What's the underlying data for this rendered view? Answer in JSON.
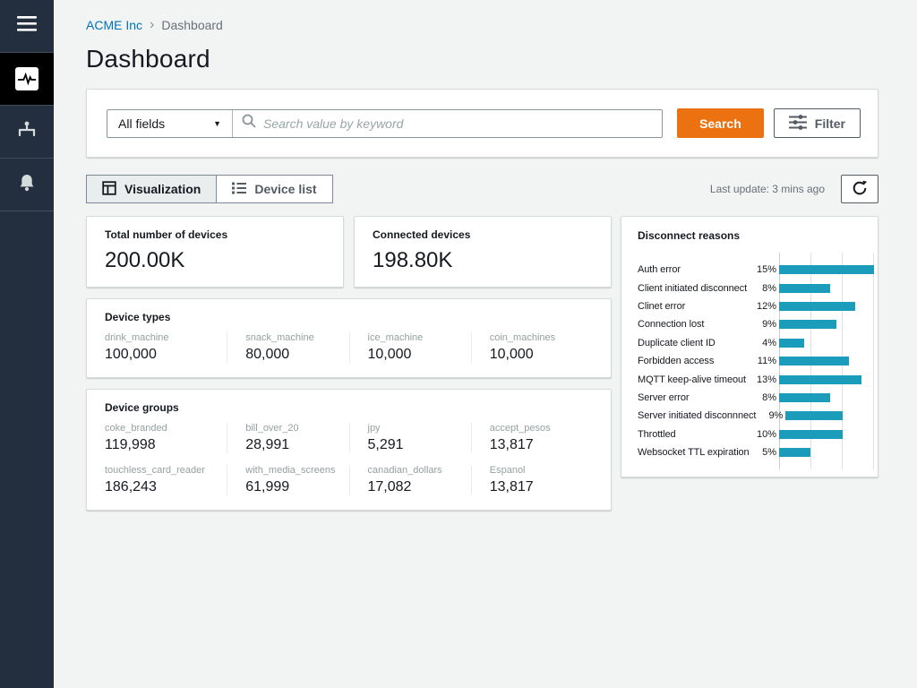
{
  "sidebar": {
    "items": [
      {
        "id": "menu",
        "icon": "hamburger-icon"
      },
      {
        "id": "monitor",
        "icon": "pulse-icon",
        "active": true
      },
      {
        "id": "hierarchy",
        "icon": "sitemap-icon"
      },
      {
        "id": "alarms",
        "icon": "bell-icon"
      }
    ]
  },
  "breadcrumb": {
    "root": "ACME Inc",
    "separator": "›",
    "current": "Dashboard"
  },
  "page": {
    "title": "Dashboard"
  },
  "search": {
    "scope_label": "All fields",
    "placeholder": "Search value by keyword",
    "search_button": "Search",
    "filter_button": "Filter"
  },
  "toolbar": {
    "tabs": [
      {
        "label": "Visualization",
        "active": true
      },
      {
        "label": "Device list",
        "active": false
      }
    ],
    "last_update": "Last update: 3 mins ago"
  },
  "summary_cards": [
    {
      "title": "Total number of devices",
      "value": "200.00K"
    },
    {
      "title": "Connected devices",
      "value": "198.80K"
    }
  ],
  "device_types": {
    "title": "Device types",
    "items": [
      {
        "label": "drink_machine",
        "value": "100,000"
      },
      {
        "label": "snack_machine",
        "value": "80,000"
      },
      {
        "label": "ice_machine",
        "value": "10,000"
      },
      {
        "label": "coin_machines",
        "value": "10,000"
      }
    ]
  },
  "device_groups": {
    "title": "Device groups",
    "items": [
      {
        "label": "coke_branded",
        "value": "119,998"
      },
      {
        "label": "bill_over_20",
        "value": "28,991"
      },
      {
        "label": "jpy",
        "value": "5,291"
      },
      {
        "label": "accept_pesos",
        "value": "13,817"
      },
      {
        "label": "touchless_card_reader",
        "value": "186,243"
      },
      {
        "label": "with_media_screens",
        "value": "61,999"
      },
      {
        "label": "canadian_dollars",
        "value": "17,082"
      },
      {
        "label": "Espanol",
        "value": "13,817"
      }
    ]
  },
  "chart_data": {
    "type": "bar",
    "orientation": "horizontal",
    "title": "Disconnect reasons",
    "categories": [
      "Auth error",
      "Client initiated disconnect",
      "Clinet error",
      "Connection lost",
      "Duplicate client ID",
      "Forbidden access",
      "MQTT keep-alive timeout",
      "Server error",
      "Server initiated disconnnect",
      "Throttled",
      "Websocket TTL expiration"
    ],
    "values": [
      15,
      8,
      12,
      9,
      4,
      11,
      13,
      8,
      9,
      10,
      5
    ],
    "value_labels": [
      "15%",
      "8%",
      "12%",
      "9%",
      "4%",
      "11%",
      "13%",
      "8%",
      "9%",
      "10%",
      "5%"
    ],
    "xlim": [
      0,
      15
    ],
    "gridlines": [
      5,
      10,
      15
    ],
    "grid": true,
    "legend": "none",
    "bar_color": "#1b9cba"
  },
  "colors": {
    "accent_orange": "#ec7211",
    "link_blue": "#0073bb",
    "sidebar_bg": "#232f3e",
    "bar_teal": "#1b9cba",
    "page_bg": "#f2f3f3"
  }
}
